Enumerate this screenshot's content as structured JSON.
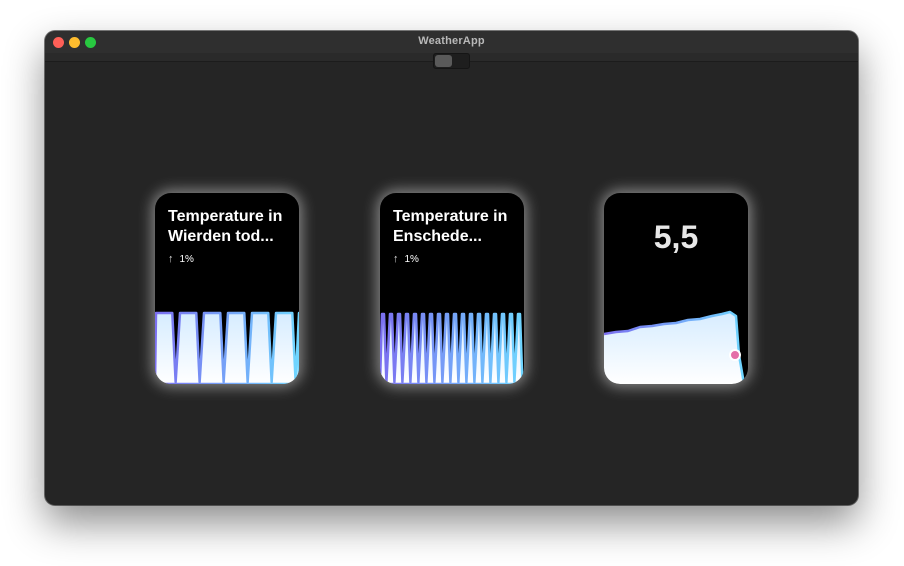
{
  "window": {
    "title": "WeatherApp"
  },
  "widgets": [
    {
      "title": "Temperature in\nWierden tod...",
      "change": "1%",
      "arrow": "arrow-up-icon"
    },
    {
      "title": "Temperature in\nEnschede...",
      "change": "1%",
      "arrow": "arrow-up-icon"
    },
    {
      "value": "5,5"
    }
  ],
  "colors": {
    "window_bg": "#252525",
    "widget_bg": "#000000",
    "line_start": "#7b6ff0",
    "line_end": "#6fd6ff",
    "fill": "#eef7ff",
    "marker": "#e46fa8"
  }
}
